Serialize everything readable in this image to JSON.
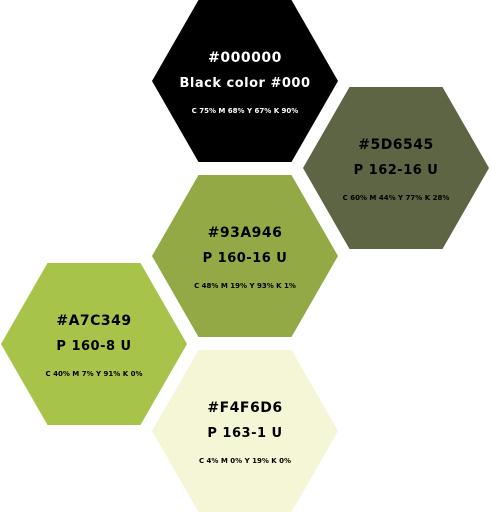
{
  "swatches": [
    {
      "id": "black",
      "hex": "#000000",
      "name": "Black color #000",
      "cmyk": "C 75% M 68% Y 67% K 90%",
      "fill": "#000000",
      "text_color": "#ffffff"
    },
    {
      "id": "5d6545",
      "hex": "#5D6545",
      "name": "P 162-16 U",
      "cmyk": "C 60% M 44% Y 77% K 28%",
      "fill": "#5D6545",
      "text_color": "#000000"
    },
    {
      "id": "93a946",
      "hex": "#93A946",
      "name": "P 160-16 U",
      "cmyk": "C 48% M 19% Y 93% K 1%",
      "fill": "#93A946",
      "text_color": "#000000"
    },
    {
      "id": "a7c349",
      "hex": "#A7C349",
      "name": "P 160-8 U",
      "cmyk": "C 40% M 7% Y 91% K 0%",
      "fill": "#A7C349",
      "text_color": "#000000"
    },
    {
      "id": "f4f6d6",
      "hex": "#F4F6D6",
      "name": "P 163-1 U",
      "cmyk": "C 4% M 0% Y 19% K 0%",
      "fill": "#F4F6D6",
      "text_color": "#000000"
    }
  ]
}
